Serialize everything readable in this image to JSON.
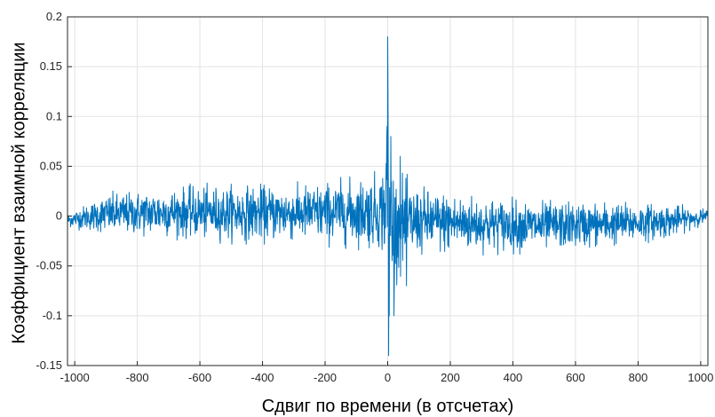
{
  "chart_data": {
    "type": "line",
    "title": "",
    "xlabel": "Сдвиг по времени (в отсчетах)",
    "ylabel": "Коэффициент взаимной корреляции",
    "xlim": [
      -1023,
      1023
    ],
    "ylim": [
      -0.15,
      0.2
    ],
    "grid": true,
    "line_color": "#0072BD",
    "x_ticks": [
      -1000,
      -800,
      -600,
      -400,
      -200,
      0,
      200,
      400,
      600,
      800,
      1000
    ],
    "x_tick_labels": [
      "-1000",
      "-800",
      "-600",
      "-400",
      "-200",
      "0",
      "200",
      "400",
      "600",
      "800",
      "1000"
    ],
    "y_ticks": [
      -0.15,
      -0.1,
      -0.05,
      0,
      0.05,
      0.1,
      0.15,
      0.2
    ],
    "y_tick_labels": [
      "-0.15",
      "-0.1",
      "-0.05",
      "0",
      "0.05",
      "0.1",
      "0.15",
      "0.2"
    ],
    "series": [
      {
        "x_start": -1023,
        "x_step": 1,
        "values": "generated",
        "envelope": {
          "x": [
            -1023,
            -900,
            -700,
            -500,
            -300,
            -100,
            -20,
            -5,
            0,
            5,
            20,
            100,
            300,
            500,
            700,
            900,
            1023
          ],
          "mean": [
            -0.004,
            0.002,
            0.004,
            0.003,
            0.003,
            0.004,
            0.005,
            0.01,
            0.03,
            0.0,
            -0.01,
            -0.005,
            -0.008,
            -0.01,
            -0.008,
            -0.005,
            0.0
          ],
          "amplitude": [
            0.006,
            0.018,
            0.022,
            0.025,
            0.025,
            0.03,
            0.035,
            0.06,
            0.15,
            0.09,
            0.05,
            0.03,
            0.025,
            0.022,
            0.02,
            0.015,
            0.006
          ]
        },
        "peaks": [
          {
            "x": 0,
            "y": 0.18
          },
          {
            "x": 1,
            "y": 0.12
          },
          {
            "x": 3,
            "y": -0.14
          },
          {
            "x": -2,
            "y": 0.09
          },
          {
            "x": 5,
            "y": -0.1
          },
          {
            "x": 10,
            "y": 0.08
          },
          {
            "x": 20,
            "y": -0.1
          },
          {
            "x": 40,
            "y": 0.06
          },
          {
            "x": 60,
            "y": -0.07
          }
        ]
      }
    ]
  }
}
